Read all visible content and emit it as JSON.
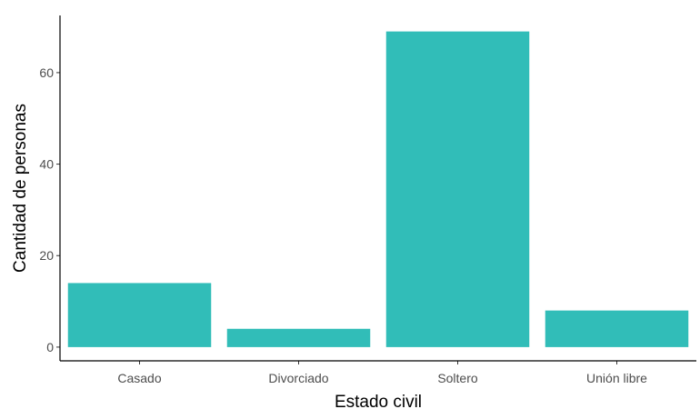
{
  "chart_data": {
    "type": "bar",
    "categories": [
      "Casado",
      "Divorciado",
      "Soltero",
      "Unión libre"
    ],
    "values": [
      14,
      4,
      69,
      8
    ],
    "xlabel": "Estado civil",
    "ylabel": "Cantidad de personas",
    "yticks": [
      0,
      20,
      40,
      60
    ],
    "ylim": [
      -3,
      72.5
    ],
    "grid": false,
    "legend": "none",
    "bar_color": "#31BDB8"
  }
}
